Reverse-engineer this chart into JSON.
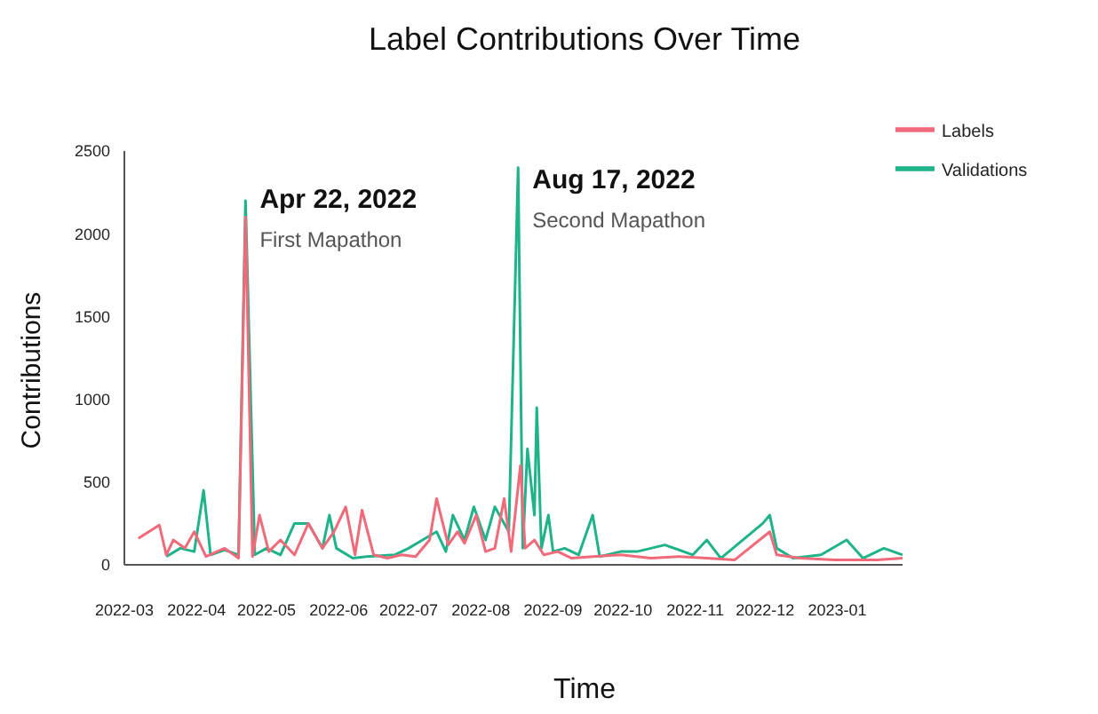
{
  "chart_data": {
    "type": "line",
    "title": "Label Contributions Over Time",
    "xlabel": "Time",
    "ylabel": "Contributions",
    "xlim": [
      "2022-03-01",
      "2023-01-29"
    ],
    "xticks": [
      "2022-03",
      "2022-04",
      "2022-05",
      "2022-06",
      "2022-07",
      "2022-08",
      "2022-09",
      "2022-10",
      "2022-11",
      "2022-12",
      "2023-01"
    ],
    "ylim": [
      0,
      2500
    ],
    "yticks": [
      0,
      500,
      1000,
      1500,
      2000,
      2500
    ],
    "grid": false,
    "legend": "top right",
    "marker": "none",
    "line_style": "solid",
    "annotations": [
      {
        "text": "Apr 22, 2022",
        "x": "2022-04-22",
        "y": 2200
      },
      "First Mapathon",
      {
        "text": "Aug 17, 2022",
        "x": "2022-08-17",
        "y": 2400
      },
      "Second Mapathon"
    ],
    "series": [
      {
        "name": "Labels",
        "color": "#f06a7a",
        "x": [
          "2022-03-07",
          "2022-03-16",
          "2022-03-19",
          "2022-03-22",
          "2022-03-27",
          "2022-03-31",
          "2022-04-05",
          "2022-04-13",
          "2022-04-19",
          "2022-04-22",
          "2022-04-25",
          "2022-04-28",
          "2022-05-02",
          "2022-05-07",
          "2022-05-13",
          "2022-05-19",
          "2022-05-25",
          "2022-05-30",
          "2022-06-04",
          "2022-06-08",
          "2022-06-11",
          "2022-06-16",
          "2022-06-22",
          "2022-06-28",
          "2022-07-04",
          "2022-07-10",
          "2022-07-13",
          "2022-07-18",
          "2022-07-22",
          "2022-07-25",
          "2022-07-30",
          "2022-08-03",
          "2022-08-07",
          "2022-08-11",
          "2022-08-14",
          "2022-08-18",
          "2022-08-20",
          "2022-08-24",
          "2022-08-28",
          "2022-09-03",
          "2022-09-09",
          "2022-09-18",
          "2022-09-30",
          "2022-10-13",
          "2022-10-25",
          "2022-11-06",
          "2022-11-18",
          "2022-12-03",
          "2022-12-06",
          "2022-12-16",
          "2022-12-31",
          "2023-01-18",
          "2023-01-29"
        ],
        "values": [
          160,
          240,
          60,
          150,
          100,
          200,
          50,
          100,
          40,
          2100,
          50,
          300,
          80,
          150,
          60,
          250,
          100,
          200,
          350,
          60,
          330,
          60,
          40,
          60,
          50,
          150,
          400,
          120,
          200,
          130,
          300,
          80,
          100,
          400,
          80,
          600,
          100,
          150,
          60,
          80,
          40,
          50,
          60,
          40,
          50,
          40,
          30,
          200,
          60,
          40,
          30,
          30,
          40
        ]
      },
      {
        "name": "Validations",
        "color": "#1fb38a",
        "x": [
          "2022-03-19",
          "2022-03-25",
          "2022-03-31",
          "2022-04-04",
          "2022-04-07",
          "2022-04-13",
          "2022-04-19",
          "2022-04-22",
          "2022-04-26",
          "2022-05-01",
          "2022-05-07",
          "2022-05-13",
          "2022-05-19",
          "2022-05-25",
          "2022-05-28",
          "2022-05-31",
          "2022-06-07",
          "2022-06-13",
          "2022-06-25",
          "2022-07-01",
          "2022-07-07",
          "2022-07-13",
          "2022-07-17",
          "2022-07-20",
          "2022-07-25",
          "2022-07-29",
          "2022-08-03",
          "2022-08-07",
          "2022-08-13",
          "2022-08-17",
          "2022-08-19",
          "2022-08-21",
          "2022-08-24",
          "2022-08-25",
          "2022-08-27",
          "2022-08-30",
          "2022-09-01",
          "2022-09-06",
          "2022-09-12",
          "2022-09-18",
          "2022-09-21",
          "2022-09-30",
          "2022-10-07",
          "2022-10-19",
          "2022-10-31",
          "2022-11-06",
          "2022-11-12",
          "2022-11-30",
          "2022-12-03",
          "2022-12-06",
          "2022-12-13",
          "2022-12-25",
          "2023-01-05",
          "2023-01-12",
          "2023-01-21",
          "2023-01-29"
        ],
        "values": [
          50,
          100,
          80,
          450,
          60,
          90,
          60,
          2200,
          60,
          100,
          60,
          250,
          250,
          100,
          300,
          100,
          40,
          50,
          60,
          100,
          150,
          200,
          80,
          300,
          150,
          350,
          150,
          350,
          200,
          2400,
          100,
          700,
          300,
          950,
          100,
          300,
          80,
          100,
          60,
          300,
          50,
          80,
          80,
          120,
          60,
          150,
          40,
          250,
          300,
          100,
          40,
          60,
          150,
          40,
          100,
          60
        ]
      }
    ]
  }
}
